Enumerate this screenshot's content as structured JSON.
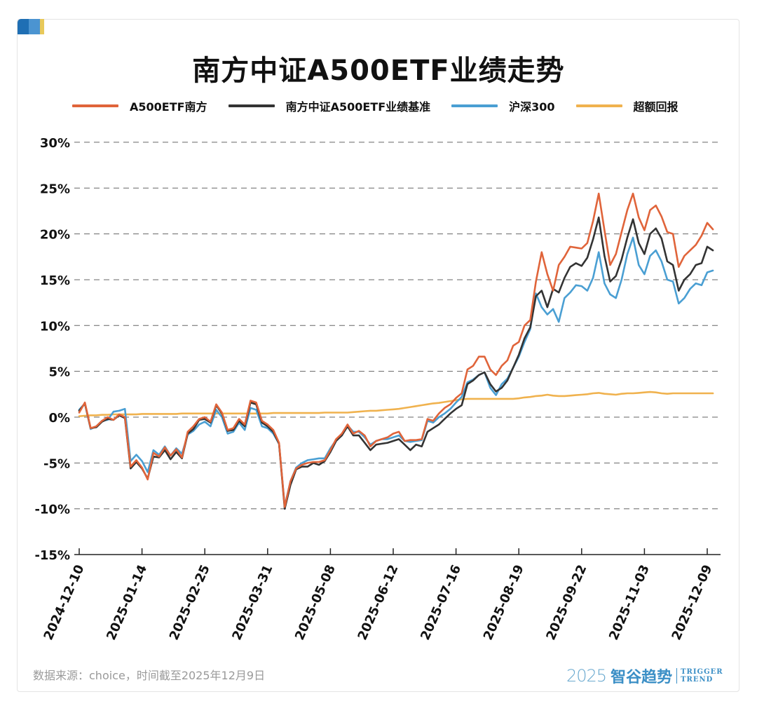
{
  "title": "南方中证A500ETF业绩走势",
  "legend": [
    {
      "label": "A500ETF南方",
      "color": "#e0643a"
    },
    {
      "label": "南方中证A500ETF业绩基准",
      "color": "#333333"
    },
    {
      "label": "沪深300",
      "color": "#4a9fd3"
    },
    {
      "label": "超额回报",
      "color": "#f0b24e"
    }
  ],
  "footer": {
    "source": "数据来源：choice，时间截至2025年12月9日",
    "brand_year": "2025",
    "brand_name": "智谷趋势",
    "brand_en_1": "TRIGGER",
    "brand_en_2": "TREND"
  },
  "chart_data": {
    "type": "line",
    "title": "南方中证A500ETF业绩走势",
    "xlabel": "",
    "ylabel": "",
    "ylim": [
      -15,
      30
    ],
    "yticks": [
      -15,
      -10,
      -5,
      0,
      5,
      10,
      15,
      20,
      25,
      30
    ],
    "ytick_labels": [
      "-15%",
      "-10%",
      "-5%",
      "0%",
      "5%",
      "10%",
      "15%",
      "20%",
      "25%",
      "30%"
    ],
    "grid": "horizontal-dashed",
    "legend_position": "top",
    "x_unit": "trading-day index",
    "xlim": [
      0,
      222
    ],
    "xticks": [
      0,
      22,
      44,
      66,
      88,
      110,
      132,
      154,
      176,
      198,
      220
    ],
    "xtick_labels": [
      "2024-12-10",
      "2025-01-14",
      "2025-02-25",
      "2025-03-31",
      "2025-05-08",
      "2025-06-12",
      "2025-07-16",
      "2025-08-19",
      "2025-09-22",
      "2025-11-03",
      "2025-12-09"
    ],
    "x": [
      0,
      2,
      4,
      6,
      8,
      10,
      12,
      14,
      16,
      18,
      20,
      22,
      24,
      26,
      28,
      30,
      32,
      34,
      36,
      38,
      40,
      42,
      44,
      46,
      48,
      50,
      52,
      54,
      56,
      58,
      60,
      62,
      64,
      66,
      68,
      70,
      72,
      74,
      76,
      78,
      80,
      82,
      84,
      86,
      88,
      90,
      92,
      94,
      96,
      98,
      100,
      102,
      104,
      106,
      108,
      110,
      112,
      114,
      116,
      118,
      120,
      122,
      124,
      126,
      128,
      130,
      132,
      134,
      136,
      138,
      140,
      142,
      144,
      146,
      148,
      150,
      152,
      154,
      156,
      158,
      160,
      162,
      164,
      166,
      168,
      170,
      172,
      174,
      176,
      178,
      180,
      182,
      184,
      186,
      188,
      190,
      192,
      194,
      196,
      198,
      200,
      202,
      204,
      206,
      208,
      210,
      212,
      214,
      216,
      218,
      220,
      222
    ],
    "series": [
      {
        "name": "A500ETF南方",
        "color": "#e0643a",
        "values": [
          0.5,
          1.6,
          -1.2,
          -1.0,
          -0.4,
          0.0,
          -0.3,
          0.3,
          0.0,
          -5.4,
          -4.7,
          -5.5,
          -6.8,
          -3.9,
          -4.3,
          -3.3,
          -4.2,
          -3.5,
          -4.4,
          -1.6,
          -1.0,
          -0.2,
          0.0,
          -0.5,
          1.4,
          0.5,
          -1.4,
          -1.2,
          -0.2,
          -0.8,
          1.8,
          1.6,
          -0.4,
          -0.8,
          -1.4,
          -2.8,
          -9.8,
          -7.0,
          -5.6,
          -5.2,
          -5.0,
          -4.9,
          -4.9,
          -4.7,
          -3.6,
          -2.4,
          -1.8,
          -0.8,
          -1.8,
          -1.5,
          -2.0,
          -3.2,
          -2.6,
          -2.4,
          -2.2,
          -1.8,
          -1.6,
          -2.6,
          -2.5,
          -2.5,
          -2.4,
          -0.2,
          -0.4,
          0.4,
          1.0,
          1.4,
          2.1,
          2.6,
          5.2,
          5.6,
          6.6,
          6.6,
          5.2,
          4.6,
          5.6,
          6.2,
          7.8,
          8.2,
          10.0,
          10.6,
          14.8,
          18.0,
          15.6,
          13.8,
          16.6,
          17.5,
          18.6,
          18.5,
          18.4,
          19.0,
          21.4,
          24.4,
          20.4,
          16.6,
          17.8,
          20.2,
          22.6,
          24.4,
          21.8,
          20.4,
          22.6,
          23.1,
          21.9,
          20.2,
          20.0,
          16.4,
          17.6,
          18.2,
          18.8,
          19.8,
          21.2,
          20.5
        ]
      },
      {
        "name": "南方中证A500ETF业绩基准",
        "color": "#333333",
        "values": [
          0.7,
          1.5,
          -1.2,
          -1.1,
          -0.5,
          -0.2,
          -0.3,
          0.2,
          -0.1,
          -5.6,
          -4.9,
          -5.6,
          -6.7,
          -4.3,
          -4.4,
          -3.6,
          -4.6,
          -3.8,
          -4.5,
          -1.8,
          -1.3,
          -0.3,
          -0.2,
          -0.6,
          1.3,
          0.4,
          -1.5,
          -1.4,
          -0.4,
          -1.0,
          1.6,
          1.4,
          -0.6,
          -1.0,
          -1.6,
          -2.9,
          -10.0,
          -7.4,
          -5.7,
          -5.4,
          -5.4,
          -5.0,
          -5.2,
          -4.8,
          -3.8,
          -2.6,
          -2.0,
          -1.0,
          -2.0,
          -2.0,
          -2.8,
          -3.6,
          -3.0,
          -2.9,
          -2.8,
          -2.6,
          -2.4,
          -3.0,
          -3.6,
          -3.0,
          -3.2,
          -1.6,
          -1.2,
          -0.8,
          -0.2,
          0.4,
          0.9,
          1.3,
          3.6,
          4.0,
          4.6,
          4.9,
          3.6,
          2.8,
          3.2,
          4.0,
          5.4,
          6.8,
          8.6,
          9.8,
          13.2,
          13.8,
          12.0,
          14.0,
          13.6,
          15.2,
          16.4,
          16.8,
          16.5,
          17.4,
          19.4,
          21.8,
          17.6,
          14.8,
          15.4,
          17.2,
          19.6,
          21.6,
          19.0,
          17.8,
          20.0,
          20.6,
          19.5,
          17.0,
          16.6,
          13.8,
          15.0,
          15.6,
          16.6,
          16.8,
          18.6,
          18.2
        ]
      },
      {
        "name": "沪深300",
        "color": "#4a9fd3",
        "values": [
          0.8,
          1.5,
          -1.3,
          -1.0,
          -0.4,
          -0.3,
          0.6,
          0.7,
          0.9,
          -4.8,
          -4.1,
          -4.8,
          -6.0,
          -3.6,
          -4.1,
          -3.2,
          -4.2,
          -3.4,
          -4.0,
          -1.9,
          -1.5,
          -0.8,
          -0.5,
          -1.0,
          0.8,
          0.0,
          -1.8,
          -1.6,
          -0.6,
          -1.4,
          1.0,
          0.8,
          -1.0,
          -1.2,
          -1.8,
          -2.9,
          -9.7,
          -7.0,
          -5.5,
          -5.0,
          -4.7,
          -4.6,
          -4.5,
          -4.5,
          -3.4,
          -2.5,
          -2.0,
          -0.9,
          -1.6,
          -1.6,
          -2.2,
          -3.0,
          -2.6,
          -2.4,
          -2.4,
          -2.2,
          -2.0,
          -2.6,
          -2.7,
          -2.6,
          -2.5,
          -0.4,
          -0.6,
          0.0,
          0.4,
          0.9,
          1.6,
          2.2,
          3.8,
          4.1,
          4.6,
          4.9,
          3.2,
          2.4,
          3.6,
          4.2,
          5.4,
          6.6,
          8.2,
          9.6,
          13.5,
          12.0,
          11.2,
          11.8,
          10.4,
          13.0,
          13.6,
          14.4,
          14.3,
          13.8,
          15.2,
          18.0,
          14.6,
          13.4,
          13.0,
          15.0,
          17.8,
          19.6,
          16.6,
          15.6,
          17.6,
          18.2,
          17.0,
          15.0,
          14.8,
          12.4,
          13.0,
          14.0,
          14.6,
          14.4,
          15.8,
          16.0
        ]
      },
      {
        "name": "超额回报",
        "color": "#f0b24e",
        "values": [
          0.1,
          0.15,
          0.2,
          0.2,
          0.25,
          0.25,
          0.3,
          0.3,
          0.3,
          0.3,
          0.3,
          0.35,
          0.35,
          0.35,
          0.35,
          0.35,
          0.35,
          0.35,
          0.4,
          0.4,
          0.4,
          0.4,
          0.4,
          0.4,
          0.4,
          0.4,
          0.4,
          0.4,
          0.4,
          0.4,
          0.4,
          0.4,
          0.4,
          0.4,
          0.45,
          0.45,
          0.45,
          0.45,
          0.45,
          0.45,
          0.45,
          0.45,
          0.45,
          0.5,
          0.5,
          0.5,
          0.5,
          0.5,
          0.55,
          0.6,
          0.65,
          0.7,
          0.7,
          0.75,
          0.8,
          0.85,
          0.9,
          1.0,
          1.1,
          1.2,
          1.3,
          1.4,
          1.5,
          1.55,
          1.65,
          1.75,
          1.85,
          1.95,
          2.0,
          2.0,
          2.0,
          2.0,
          2.0,
          2.0,
          2.0,
          2.0,
          2.0,
          2.05,
          2.15,
          2.2,
          2.3,
          2.35,
          2.45,
          2.35,
          2.3,
          2.3,
          2.35,
          2.4,
          2.45,
          2.5,
          2.6,
          2.65,
          2.55,
          2.5,
          2.45,
          2.55,
          2.6,
          2.6,
          2.65,
          2.7,
          2.75,
          2.7,
          2.6,
          2.55,
          2.6,
          2.6,
          2.6,
          2.6,
          2.6,
          2.6,
          2.6,
          2.6
        ]
      }
    ]
  }
}
